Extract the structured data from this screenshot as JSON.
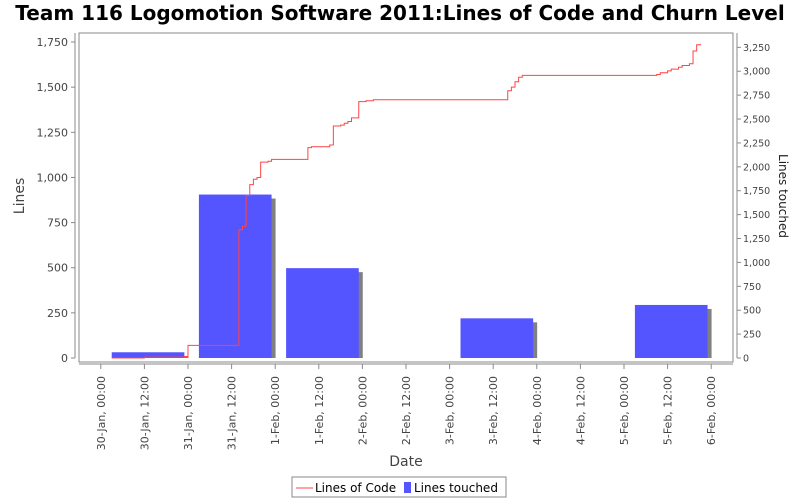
{
  "chart_data": {
    "type": "bar",
    "title": "Team 116 Logomotion Software 2011:Lines of Code and Churn Level",
    "xlabel": "Date",
    "ylabel": "Lines",
    "y2label": "Lines touched",
    "ylim": [
      0,
      1800
    ],
    "y2lim": [
      0,
      3400
    ],
    "yticks": [
      0,
      250,
      500,
      750,
      1000,
      1250,
      1500,
      1750
    ],
    "yticklabels": [
      "0",
      "250",
      "500",
      "750",
      "1,000",
      "1,250",
      "1,500",
      "1,750"
    ],
    "y2ticks": [
      0,
      250,
      500,
      750,
      1000,
      1250,
      1500,
      1750,
      2000,
      2250,
      2500,
      2750,
      3000,
      3250
    ],
    "y2ticklabels": [
      "0",
      "250",
      "500",
      "750",
      "1,000",
      "1,250",
      "1,500",
      "1,750",
      "2,000",
      "2,250",
      "2,500",
      "2,750",
      "3,000",
      "3,250"
    ],
    "xlim": [
      "2011-01-29 18:00",
      "2011-02-06 06:00"
    ],
    "xticks": [
      "2011-01-30 00:00",
      "2011-01-30 12:00",
      "2011-01-31 00:00",
      "2011-01-31 12:00",
      "2011-02-01 00:00",
      "2011-02-01 12:00",
      "2011-02-02 00:00",
      "2011-02-02 12:00",
      "2011-02-03 00:00",
      "2011-02-03 12:00",
      "2011-02-04 00:00",
      "2011-02-04 12:00",
      "2011-02-05 00:00",
      "2011-02-05 12:00",
      "2011-02-06 00:00"
    ],
    "xticklabels": [
      "30-Jan, 00:00",
      "30-Jan, 12:00",
      "31-Jan, 00:00",
      "31-Jan, 12:00",
      "1-Feb, 00:00",
      "1-Feb, 12:00",
      "2-Feb, 00:00",
      "2-Feb, 12:00",
      "3-Feb, 00:00",
      "3-Feb, 12:00",
      "4-Feb, 00:00",
      "4-Feb, 12:00",
      "5-Feb, 00:00",
      "5-Feb, 12:00",
      "6-Feb, 00:00"
    ],
    "grid": false,
    "legend_position": "bottom-center",
    "legend": [
      "Lines of Code",
      "Lines touched"
    ],
    "series": [
      {
        "name": "Lines touched",
        "type": "bar",
        "axis": "right",
        "color": "#5555ff",
        "shadow_color": "#808080",
        "bars": [
          {
            "start": "2011-01-30 03:00",
            "end": "2011-01-30 23:00",
            "value": 60
          },
          {
            "start": "2011-01-31 03:00",
            "end": "2011-01-31 23:00",
            "value": 1710
          },
          {
            "start": "2011-02-01 03:00",
            "end": "2011-02-01 23:00",
            "value": 940
          },
          {
            "start": "2011-02-03 03:00",
            "end": "2011-02-03 23:00",
            "value": 415
          },
          {
            "start": "2011-02-05 03:00",
            "end": "2011-02-05 23:00",
            "value": 555
          }
        ]
      },
      {
        "name": "Lines of Code",
        "type": "step-line",
        "axis": "left",
        "color": "#ff4444",
        "points": [
          [
            "2011-01-30 03:00",
            0
          ],
          [
            "2011-01-30 12:00",
            5
          ],
          [
            "2011-01-30 23:00",
            8
          ],
          [
            "2011-01-31 00:00",
            70
          ],
          [
            "2011-01-31 09:00",
            70
          ],
          [
            "2011-01-31 12:00",
            70
          ],
          [
            "2011-01-31 14:00",
            710
          ],
          [
            "2011-01-31 15:00",
            730
          ],
          [
            "2011-01-31 16:00",
            900
          ],
          [
            "2011-01-31 17:00",
            960
          ],
          [
            "2011-01-31 18:00",
            990
          ],
          [
            "2011-01-31 19:00",
            1000
          ],
          [
            "2011-01-31 20:00",
            1085
          ],
          [
            "2011-01-31 22:00",
            1090
          ],
          [
            "2011-01-31 23:00",
            1100
          ],
          [
            "2011-02-01 08:00",
            1100
          ],
          [
            "2011-02-01 09:00",
            1165
          ],
          [
            "2011-02-01 10:00",
            1170
          ],
          [
            "2011-02-01 15:00",
            1180
          ],
          [
            "2011-02-01 16:00",
            1285
          ],
          [
            "2011-02-01 18:00",
            1290
          ],
          [
            "2011-02-01 19:00",
            1300
          ],
          [
            "2011-02-01 20:00",
            1310
          ],
          [
            "2011-02-01 21:00",
            1330
          ],
          [
            "2011-02-01 23:00",
            1420
          ],
          [
            "2011-02-02 01:00",
            1425
          ],
          [
            "2011-02-02 03:00",
            1430
          ],
          [
            "2011-02-03 15:00",
            1430
          ],
          [
            "2011-02-03 16:00",
            1480
          ],
          [
            "2011-02-03 17:00",
            1500
          ],
          [
            "2011-02-03 18:00",
            1530
          ],
          [
            "2011-02-03 19:00",
            1555
          ],
          [
            "2011-02-03 20:00",
            1565
          ],
          [
            "2011-02-05 08:00",
            1565
          ],
          [
            "2011-02-05 09:00",
            1570
          ],
          [
            "2011-02-05 10:00",
            1580
          ],
          [
            "2011-02-05 12:00",
            1590
          ],
          [
            "2011-02-05 13:00",
            1600
          ],
          [
            "2011-02-05 15:00",
            1610
          ],
          [
            "2011-02-05 16:00",
            1620
          ],
          [
            "2011-02-05 18:00",
            1630
          ],
          [
            "2011-02-05 19:00",
            1700
          ],
          [
            "2011-02-05 20:00",
            1735
          ],
          [
            "2011-02-05 21:00",
            1740
          ]
        ]
      }
    ]
  }
}
